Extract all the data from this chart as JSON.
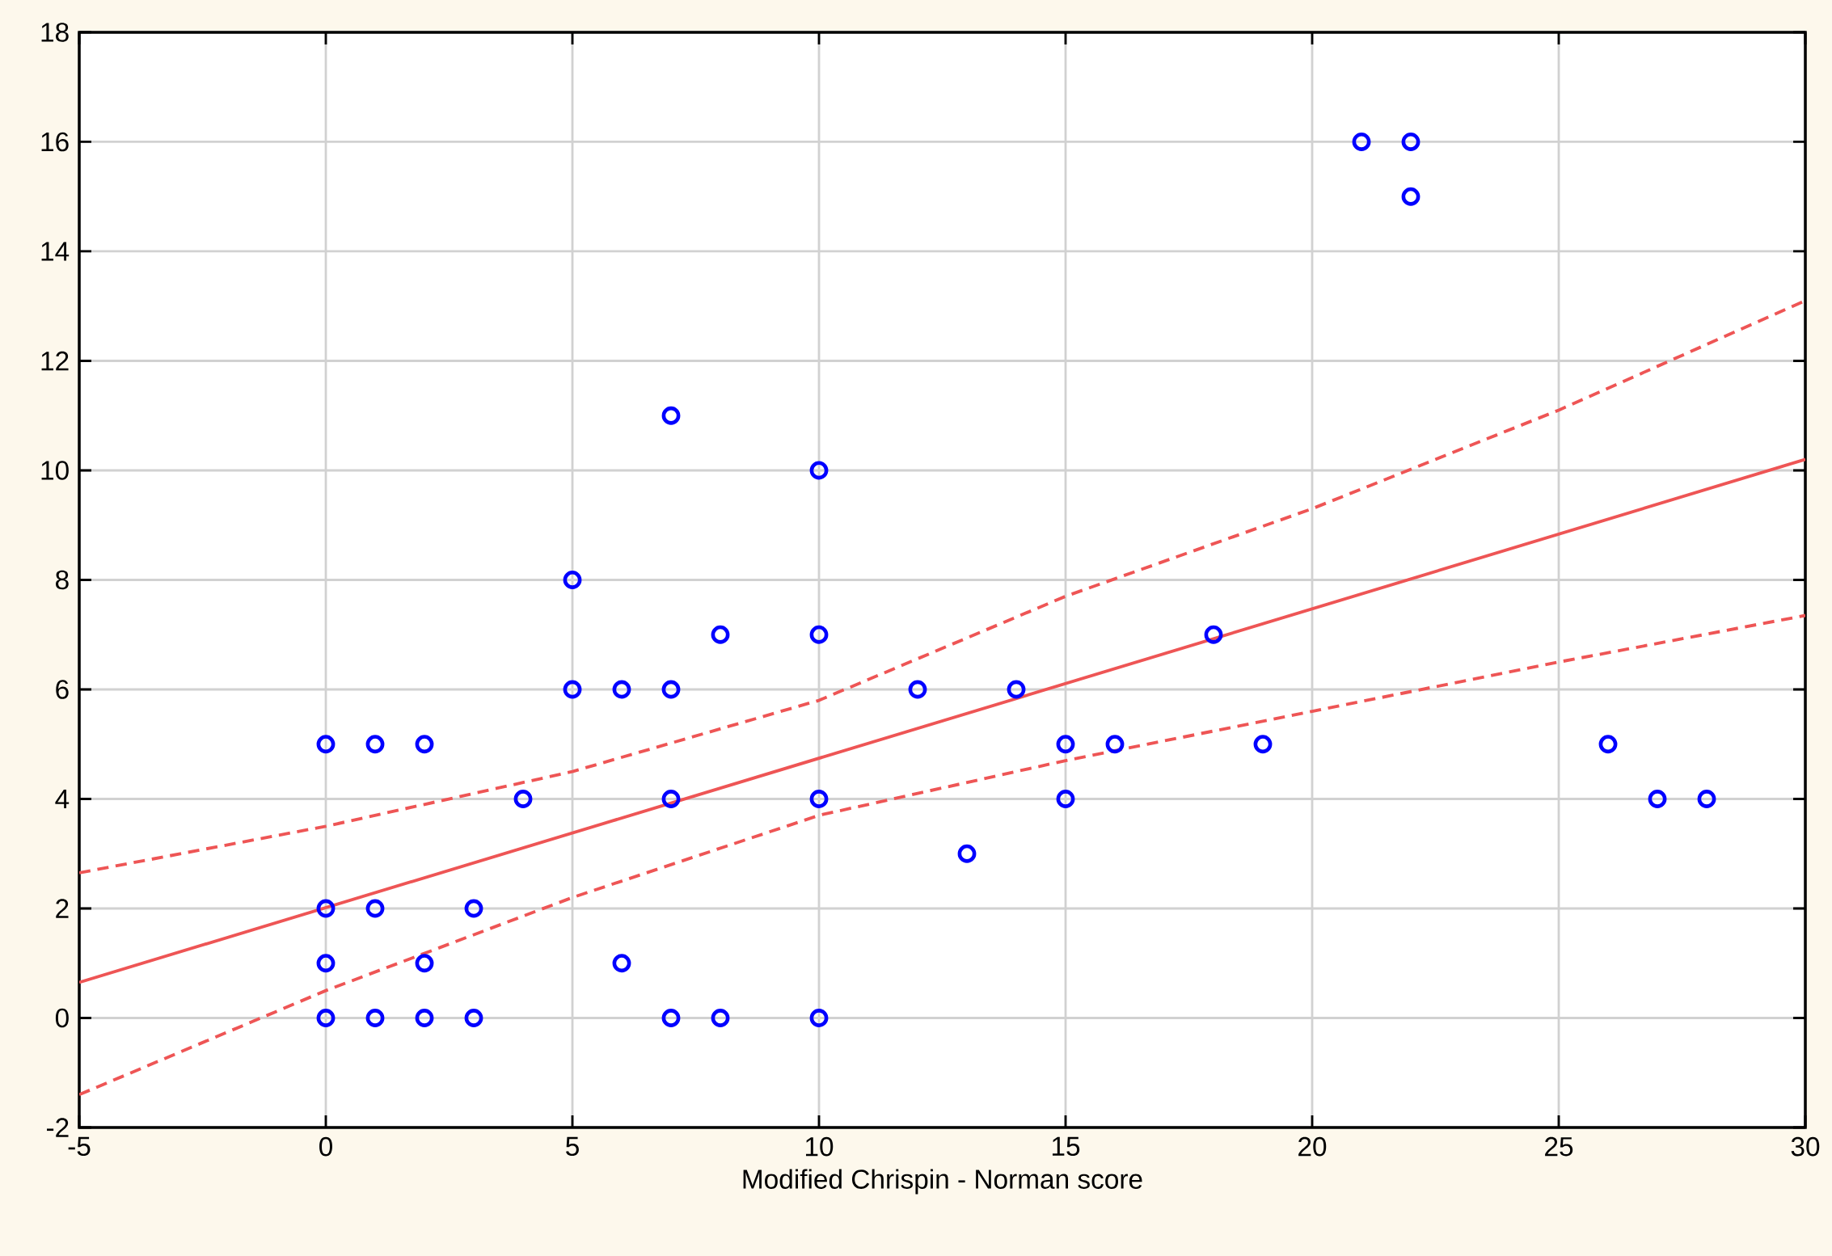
{
  "chart_data": {
    "type": "scatter",
    "xlabel": "Modified Chrispin - Norman score",
    "xlim": [
      -5,
      30
    ],
    "xticks": [
      -5,
      0,
      5,
      10,
      15,
      20,
      25,
      30
    ],
    "ylim": [
      -2,
      18
    ],
    "yticks": [
      -2,
      0,
      2,
      4,
      6,
      8,
      10,
      12,
      14,
      16,
      18
    ],
    "grid": true,
    "series": [
      {
        "marker": "circle",
        "color": "#0000ff",
        "x": [
          0,
          1,
          2,
          4,
          5,
          5,
          6,
          7,
          7,
          7,
          8,
          10,
          10,
          10,
          12,
          14,
          15,
          15,
          16,
          13,
          18,
          19,
          21,
          22,
          22,
          26,
          27,
          28,
          0,
          1,
          3,
          0,
          2,
          6,
          0,
          1,
          2,
          3,
          7,
          8,
          10
        ],
        "values": [
          5,
          5,
          5,
          4,
          8,
          6,
          6,
          6,
          11,
          4,
          7,
          10,
          7,
          4,
          6,
          6,
          5,
          4,
          5,
          3,
          7,
          5,
          16,
          16,
          15,
          5,
          4,
          4,
          2,
          2,
          2,
          1,
          1,
          1,
          0,
          0,
          0,
          0,
          0,
          0,
          0
        ]
      },
      {
        "type": "line",
        "color": "#ee5555",
        "line_style": "solid",
        "x": [
          -5,
          30
        ],
        "values": [
          0.65,
          10.2
        ]
      },
      {
        "type": "line",
        "color": "#ee5555",
        "line_style": "dashed",
        "x": [
          -5,
          0,
          5,
          10,
          15,
          20,
          25,
          30
        ],
        "values": [
          2.65,
          3.5,
          4.5,
          5.8,
          7.7,
          9.3,
          11.1,
          13.1
        ]
      },
      {
        "type": "line",
        "color": "#ee5555",
        "line_style": "dashed",
        "x": [
          -5,
          0,
          5,
          10,
          15,
          20,
          25,
          30
        ],
        "values": [
          -1.4,
          0.5,
          2.2,
          3.7,
          4.7,
          5.6,
          6.5,
          7.35
        ]
      }
    ]
  }
}
